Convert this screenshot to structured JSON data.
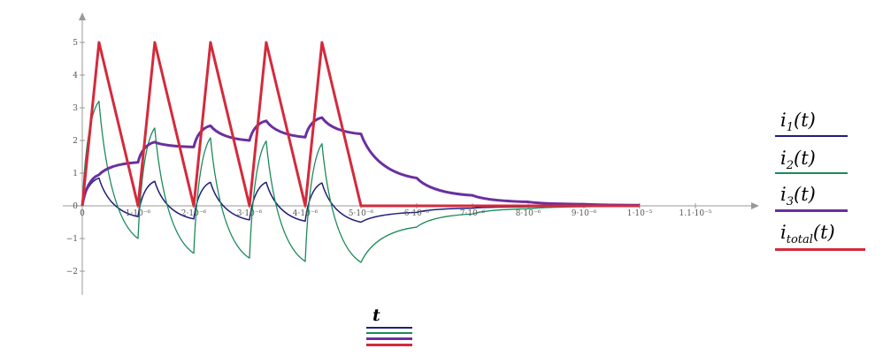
{
  "chart_data": {
    "type": "line",
    "xlim": [
      0,
      1.12e-05
    ],
    "ylim": [
      -2.7,
      6
    ],
    "x_ticks": [
      {
        "v": 0,
        "label": "0"
      },
      {
        "v": 1e-06,
        "label": "1·10⁻⁶"
      },
      {
        "v": 2e-06,
        "label": "2·10⁻⁶"
      },
      {
        "v": 3e-06,
        "label": "3·10⁻⁶"
      },
      {
        "v": 4e-06,
        "label": "4·10⁻⁶"
      },
      {
        "v": 5e-06,
        "label": "5·10⁻⁶"
      },
      {
        "v": 6e-06,
        "label": "6·10⁻⁶"
      },
      {
        "v": 7e-06,
        "label": "7·10⁻⁶"
      },
      {
        "v": 8e-06,
        "label": "8·10⁻⁶"
      },
      {
        "v": 9e-06,
        "label": "9·10⁻⁶"
      },
      {
        "v": 1e-05,
        "label": "1·10⁻⁵"
      },
      {
        "v": 1.1e-05,
        "label": "1.1·10⁻⁵"
      }
    ],
    "y_ticks": [
      {
        "v": -2,
        "label": "−2"
      },
      {
        "v": -1,
        "label": "−1"
      },
      {
        "v": 1,
        "label": "1"
      },
      {
        "v": 2,
        "label": "2"
      },
      {
        "v": 3,
        "label": "3"
      },
      {
        "v": 4,
        "label": "4"
      },
      {
        "v": 5,
        "label": "5"
      }
    ],
    "origin_label": "0",
    "series": [
      {
        "name": "i1(t)",
        "color": "#1f1f7a",
        "x": [
          0,
          3e-07,
          1e-06,
          1.3e-06,
          2e-06,
          2.3e-06,
          3e-06,
          3.3e-06,
          4e-06,
          4.3e-06,
          5e-06,
          6e-06,
          7e-06,
          8e-06,
          9e-06,
          1e-05
        ],
        "y": [
          0,
          0.85,
          -0.33,
          0.75,
          -0.4,
          0.72,
          -0.43,
          0.72,
          -0.47,
          0.7,
          -0.5,
          -0.2,
          -0.07,
          -0.03,
          -0.01,
          0
        ]
      },
      {
        "name": "i2(t)",
        "color": "#1b8a5a",
        "x": [
          0,
          3e-07,
          1e-06,
          1.3e-06,
          2e-06,
          2.3e-06,
          3e-06,
          3.3e-06,
          4e-06,
          4.3e-06,
          5e-06,
          6e-06,
          7e-06,
          8e-06,
          9e-06,
          1e-05
        ],
        "y": [
          0,
          3.2,
          -1.0,
          2.38,
          -1.45,
          2.08,
          -1.6,
          1.98,
          -1.7,
          1.9,
          -1.73,
          -0.65,
          -0.25,
          -0.09,
          -0.03,
          -0.01
        ]
      },
      {
        "name": "i3(t)",
        "color": "#6b2fa0",
        "x": [
          0,
          3e-07,
          1e-06,
          1.3e-06,
          2e-06,
          2.3e-06,
          3e-06,
          3.3e-06,
          4e-06,
          4.3e-06,
          5e-06,
          6e-06,
          7e-06,
          8e-06,
          9e-06,
          1e-05
        ],
        "y": [
          0,
          0.95,
          1.33,
          1.95,
          1.8,
          2.45,
          2.0,
          2.6,
          2.1,
          2.7,
          2.2,
          0.85,
          0.32,
          0.12,
          0.05,
          0.02
        ]
      },
      {
        "name": "itotal(t)",
        "color": "#d42a3c",
        "x": [
          0,
          3e-07,
          1e-06,
          1.3e-06,
          2e-06,
          2.3e-06,
          3e-06,
          3.3e-06,
          4e-06,
          4.3e-06,
          5e-06,
          1e-05
        ],
        "y": [
          0,
          5,
          0,
          5,
          0,
          5,
          0,
          5,
          0,
          5,
          0,
          0
        ]
      }
    ]
  },
  "legend": [
    {
      "base": "i",
      "sub": "1",
      "arg": "(t)",
      "color": "#1f1f7a"
    },
    {
      "base": "i",
      "sub": "2",
      "arg": "(t)",
      "color": "#1b8a5a"
    },
    {
      "base": "i",
      "sub": "3",
      "arg": "(t)",
      "color": "#6b2fa0"
    },
    {
      "base": "i",
      "sub": "total",
      "arg": "(t)",
      "color": "#d42a3c"
    }
  ],
  "x_variable": "t"
}
